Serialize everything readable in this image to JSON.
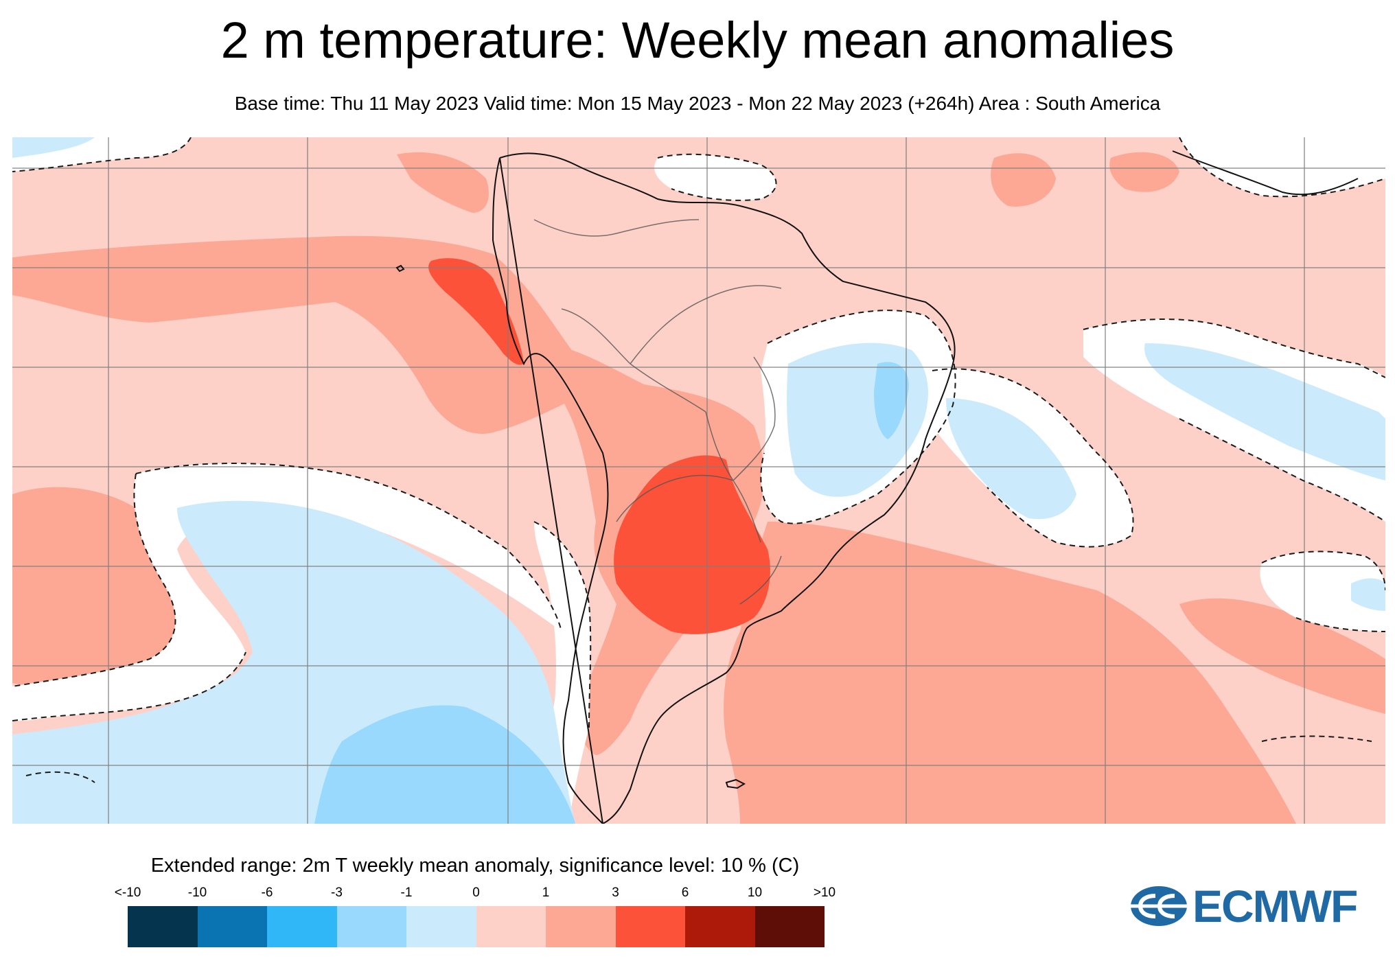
{
  "title": "2 m temperature: Weekly mean anomalies",
  "subtitle": "Base time: Thu 11 May 2023 Valid time: Mon 15 May 2023 - Mon 22 May 2023 (+264h) Area : South America",
  "legend": {
    "title": "Extended range: 2m T weekly mean anomaly, significance level: 10 % (C)",
    "ticks": [
      "<-10",
      "-10",
      "-6",
      "-3",
      "-1",
      "0",
      "1",
      "3",
      "6",
      "10",
      ">10"
    ],
    "bins": [
      {
        "range": "<-10 to -10",
        "color": "#05344f"
      },
      {
        "range": "-10 to -6",
        "color": "#0a73b2"
      },
      {
        "range": "-6 to -3",
        "color": "#2fb7f8"
      },
      {
        "range": "-3 to -1",
        "color": "#98d9fd"
      },
      {
        "range": "-1 to 0",
        "color": "#cbebfd"
      },
      {
        "range": "0 to 1",
        "color": "#fdd0c8"
      },
      {
        "range": "1 to 3",
        "color": "#fca895"
      },
      {
        "range": "3 to 6",
        "color": "#fc5239"
      },
      {
        "range": "6 to 10",
        "color": "#ad1a09"
      },
      {
        "range": ">10",
        "color": "#5e0d07"
      }
    ]
  },
  "map": {
    "area": "South America",
    "not_significant_color": "#ffffff",
    "significance_contour": "dashed black",
    "gridlines": "on"
  },
  "logo": {
    "text": "ECMWF",
    "color": "#1f6aa5"
  }
}
